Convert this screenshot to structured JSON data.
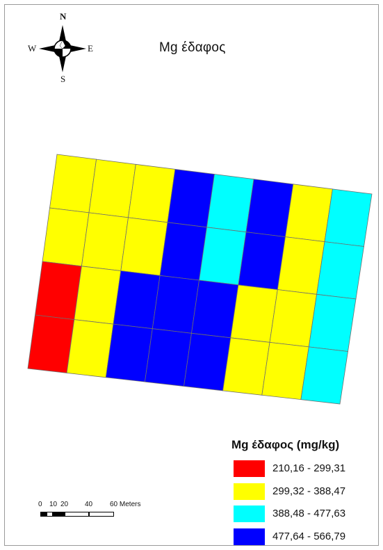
{
  "title": "Mg έδαφος",
  "compass": {
    "n": "N",
    "s": "S",
    "e": "E",
    "w": "W"
  },
  "legend": {
    "title": "Mg έδαφος (mg/kg)",
    "classes": [
      {
        "label": "210,16 - 299,31",
        "color": "#ff0000"
      },
      {
        "label": "299,32 - 388,47",
        "color": "#ffff00"
      },
      {
        "label": "388,48 - 477,63",
        "color": "#00ffff"
      },
      {
        "label": "477,64 - 566,79",
        "color": "#0000ff"
      }
    ]
  },
  "scale_bar": {
    "ticks": [
      "0",
      "10",
      "20",
      "40",
      "60 Meters"
    ]
  },
  "grid": {
    "columns": 8,
    "rows": 4,
    "cell_class_index": [
      [
        1,
        1,
        1,
        3,
        2,
        3,
        1,
        2
      ],
      [
        1,
        1,
        1,
        3,
        2,
        3,
        1,
        2
      ],
      [
        0,
        1,
        3,
        3,
        3,
        1,
        1,
        2
      ],
      [
        0,
        1,
        3,
        3,
        3,
        1,
        1,
        2
      ]
    ]
  }
}
